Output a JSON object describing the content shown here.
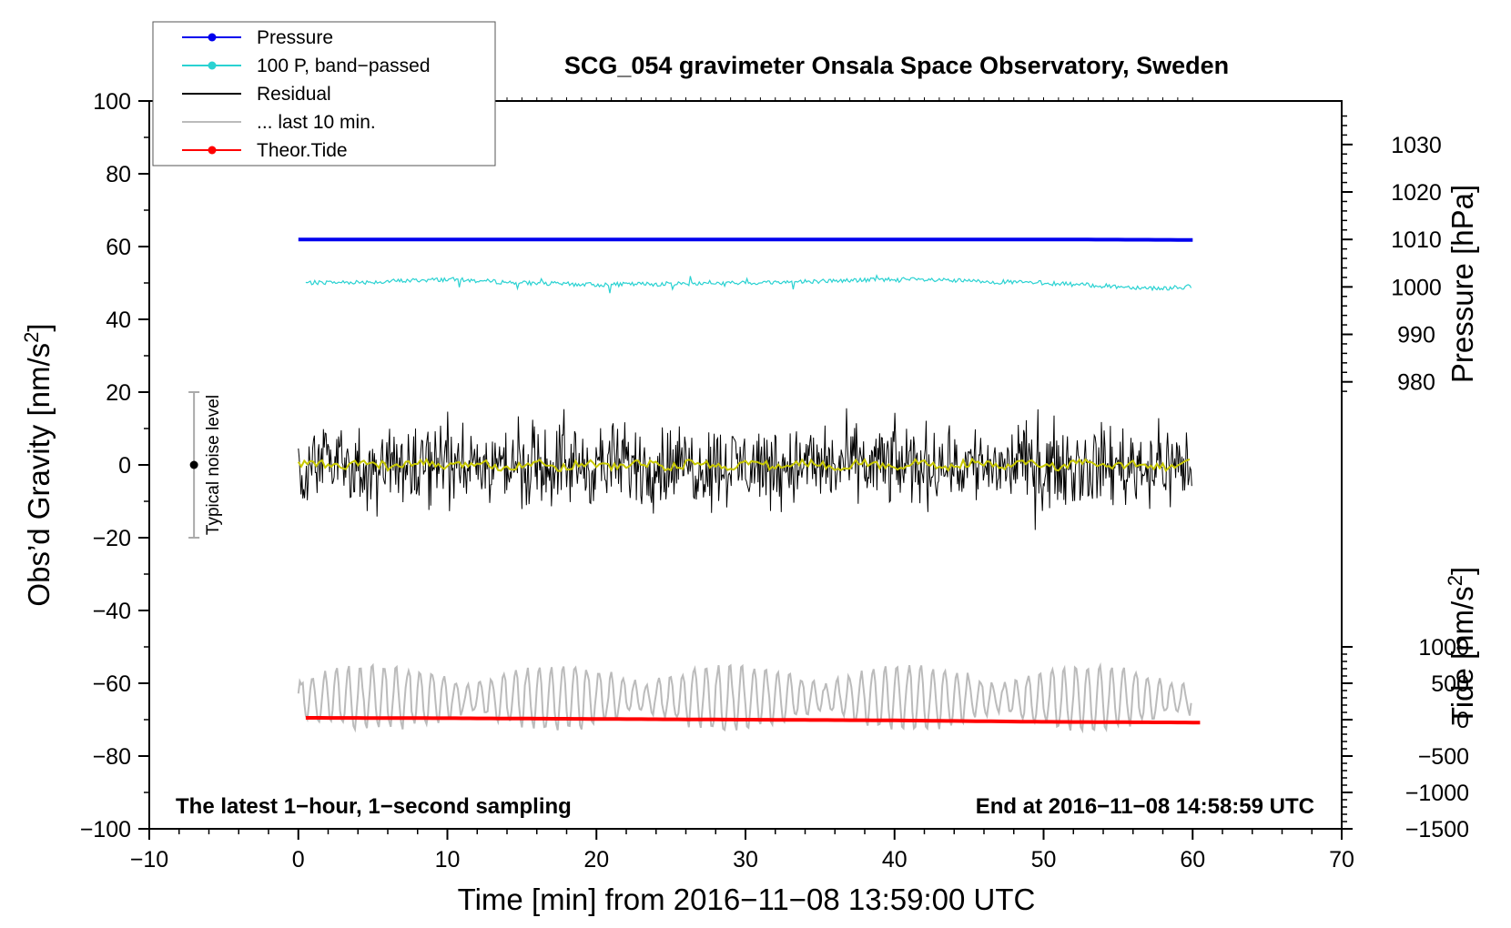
{
  "chart_data": {
    "type": "line",
    "title": "SCG_054 gravimeter Onsala Space Observatory, Sweden",
    "xlabel": "Time [min] from 2016−11−08 13:59:00 UTC",
    "ylabel_left": "Obs’d Gravity [nm/s",
    "ylabel_left_sup": "2",
    "ylabel_left_end": "]",
    "ylabel_right_pressure": "Pressure [hPa]",
    "ylabel_right_tide": "Tide [nm/s",
    "ylabel_right_tide_sup": "2",
    "ylabel_right_tide_end": "]",
    "xlim": [
      -10,
      70
    ],
    "ylim": [
      -100,
      100
    ],
    "xticks": [
      "−10",
      "0",
      "10",
      "20",
      "30",
      "40",
      "50",
      "60",
      "70"
    ],
    "xtick_values": [
      -10,
      0,
      10,
      20,
      30,
      40,
      50,
      60,
      70
    ],
    "yticks": [
      "−100",
      "−80",
      "−60",
      "−40",
      "−20",
      "0",
      "20",
      "40",
      "60",
      "80",
      "100"
    ],
    "ytick_values": [
      -100,
      -80,
      -60,
      -40,
      -20,
      0,
      20,
      40,
      60,
      80,
      100
    ],
    "pressure_ticks": [
      "980",
      "990",
      "1000",
      "1010",
      "1020",
      "1030"
    ],
    "pressure_tick_values": [
      980,
      990,
      1000,
      1010,
      1020,
      1030
    ],
    "pressure_scale": {
      "hpa_at_gravity_0": 962.5,
      "hpa_per_gravity_unit": 0.7667
    },
    "tide_ticks": [
      "−1500",
      "−1000",
      "−500",
      "0",
      "500",
      "1000"
    ],
    "tide_tick_values": [
      -1500,
      -1000,
      -500,
      0,
      500,
      1000
    ],
    "tide_scale": {
      "tide_at_gravity_neg100": -1500,
      "tide_per_gravity_unit": 50
    },
    "legend": {
      "position": "top-left",
      "entries": [
        {
          "label": "Pressure",
          "color": "#0000ee",
          "marker": "dot"
        },
        {
          "label": "100 P, band−passed",
          "color": "#2ad2d2",
          "marker": "dot"
        },
        {
          "label": "Residual",
          "color": "#000000",
          "marker": "none"
        },
        {
          "label": "... last 10 min.",
          "color": "#bbbbbb",
          "marker": "none"
        },
        {
          "label": "Theor.Tide",
          "color": "#ff0000",
          "marker": "dot"
        }
      ]
    },
    "noise_indicator": {
      "label": "Typical noise level",
      "x": -7,
      "center": 0,
      "low": -20,
      "high": 20
    },
    "footnote_left": "The latest 1−hour, 1−second sampling",
    "footnote_right": "End at 2016−11−08 14:58:59 UTC",
    "series": [
      {
        "name": "Pressure",
        "axis": "pressure",
        "color": "#0000ee",
        "x": [
          0,
          10,
          20,
          30,
          40,
          50,
          60
        ],
        "values": [
          1010.0,
          1010.0,
          1010.0,
          1010.0,
          1010.0,
          1010.0,
          1009.9
        ]
      },
      {
        "name": "100 P, band−passed",
        "axis": "gravity",
        "color": "#2ad2d2",
        "x": [
          0,
          5,
          10,
          15,
          20,
          25,
          30,
          35,
          40,
          45,
          50,
          55,
          58,
          60
        ],
        "values": [
          50,
          50.3,
          51,
          50,
          49.5,
          49.8,
          50,
          50.5,
          51,
          50.5,
          50,
          49,
          48.5,
          49
        ]
      },
      {
        "name": "Residual",
        "axis": "gravity",
        "color": "#000000",
        "x": [
          0,
          60
        ],
        "values": [
          0,
          0
        ],
        "amplitude": 10
      },
      {
        "name": "Residual smoothed",
        "axis": "gravity",
        "color": "#c8c800",
        "x": [
          0,
          60
        ],
        "values": [
          0,
          0
        ]
      },
      {
        "name": "... last 10 min.",
        "axis": "gravity",
        "color": "#bbbbbb",
        "x": [
          0,
          60
        ],
        "values": [
          -64,
          -64
        ],
        "amplitude": 9
      },
      {
        "name": "Theor.Tide",
        "axis": "tide",
        "color": "#ff0000",
        "x": [
          0.5,
          10,
          20,
          30,
          40,
          50,
          60.5
        ],
        "values": [
          25,
          20,
          10,
          0,
          -10,
          -30,
          -40
        ]
      }
    ]
  }
}
